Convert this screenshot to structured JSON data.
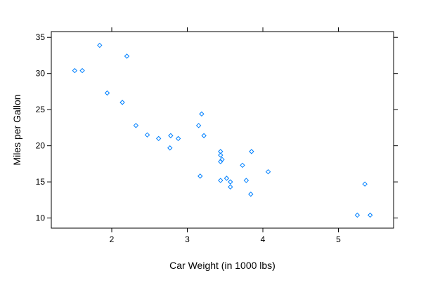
{
  "chart_data": {
    "type": "scatter",
    "title": "",
    "xlabel": "Car Weight (in 1000 lbs)",
    "ylabel": "Miles per Gallon",
    "xlim": [
      1.2,
      5.73
    ],
    "ylim": [
      8.6,
      35.8
    ],
    "xticks": [
      2,
      3,
      4,
      5
    ],
    "yticks": [
      10,
      15,
      20,
      25,
      30,
      35
    ],
    "grid": false,
    "legend": "none",
    "marker": "diamond-open",
    "point_color": "#0080ff",
    "points": [
      {
        "x": 1.51,
        "y": 30.4
      },
      {
        "x": 1.61,
        "y": 30.4
      },
      {
        "x": 1.84,
        "y": 33.9
      },
      {
        "x": 1.94,
        "y": 27.3
      },
      {
        "x": 2.14,
        "y": 26.0
      },
      {
        "x": 2.2,
        "y": 32.4
      },
      {
        "x": 2.32,
        "y": 22.8
      },
      {
        "x": 2.47,
        "y": 21.5
      },
      {
        "x": 2.62,
        "y": 21.0
      },
      {
        "x": 2.77,
        "y": 19.7
      },
      {
        "x": 2.78,
        "y": 21.4
      },
      {
        "x": 2.88,
        "y": 21.0
      },
      {
        "x": 3.15,
        "y": 22.8
      },
      {
        "x": 3.17,
        "y": 15.8
      },
      {
        "x": 3.19,
        "y": 24.4
      },
      {
        "x": 3.22,
        "y": 21.4
      },
      {
        "x": 3.44,
        "y": 18.7
      },
      {
        "x": 3.44,
        "y": 19.2
      },
      {
        "x": 3.44,
        "y": 17.8
      },
      {
        "x": 3.44,
        "y": 15.2
      },
      {
        "x": 3.46,
        "y": 18.1
      },
      {
        "x": 3.52,
        "y": 15.5
      },
      {
        "x": 3.57,
        "y": 15.0
      },
      {
        "x": 3.57,
        "y": 14.3
      },
      {
        "x": 3.73,
        "y": 17.3
      },
      {
        "x": 3.78,
        "y": 15.2
      },
      {
        "x": 3.84,
        "y": 13.3
      },
      {
        "x": 3.85,
        "y": 19.2
      },
      {
        "x": 4.07,
        "y": 16.4
      },
      {
        "x": 5.25,
        "y": 10.4
      },
      {
        "x": 5.35,
        "y": 14.7
      },
      {
        "x": 5.42,
        "y": 10.4
      }
    ]
  }
}
